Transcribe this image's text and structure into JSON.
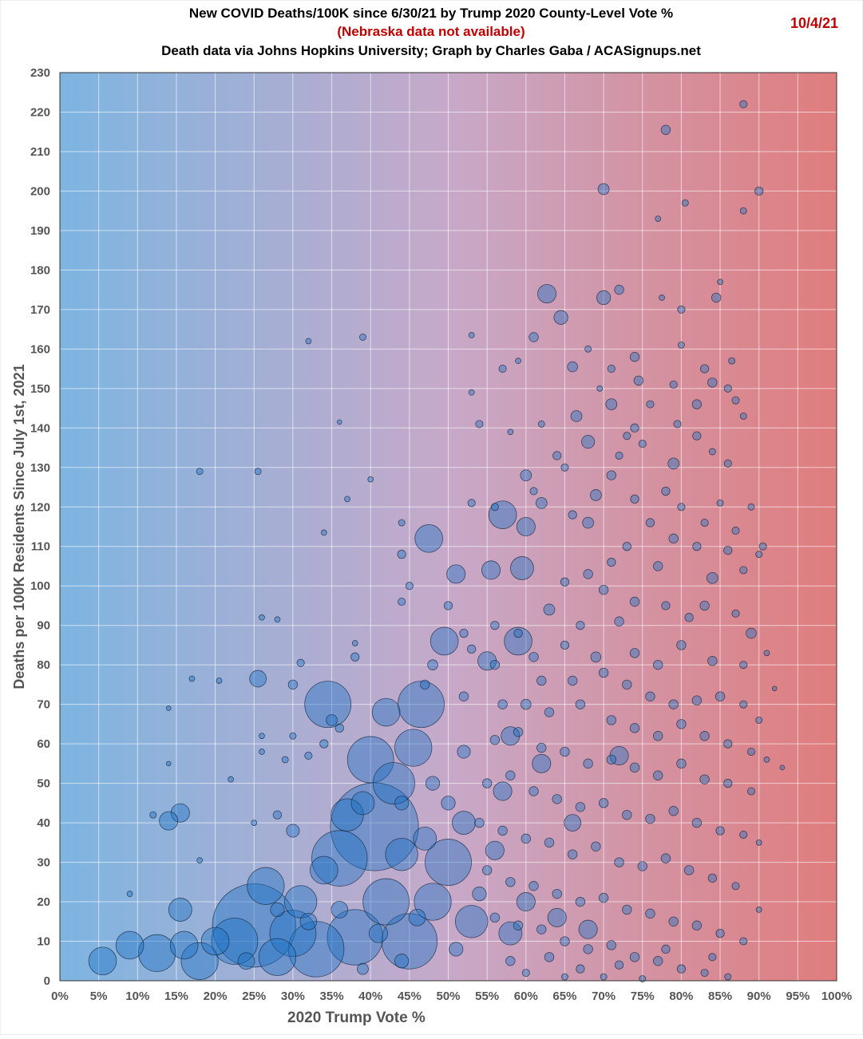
{
  "chart_data": {
    "type": "scatter",
    "title": "New COVID Deaths/100K since 6/30/21 by Trump 2020 County-Level Vote %",
    "subtitle_note": "(Nebraska data not available)",
    "subtitle": "Death data via Johns Hopkins University; Graph by Charles Gaba / ACASignups.net",
    "date": "10/4/21",
    "xlabel": "2020 Trump Vote %",
    "ylabel": "Deaths per 100K Residents Since July 1st, 2021",
    "xlim": [
      0,
      100
    ],
    "ylim": [
      0,
      230
    ],
    "x_ticks": [
      "0%",
      "5%",
      "10%",
      "15%",
      "20%",
      "25%",
      "30%",
      "35%",
      "40%",
      "45%",
      "50%",
      "55%",
      "60%",
      "65%",
      "70%",
      "75%",
      "80%",
      "85%",
      "90%",
      "95%",
      "100%"
    ],
    "y_ticks": [
      "0",
      "10",
      "20",
      "30",
      "40",
      "50",
      "60",
      "70",
      "80",
      "90",
      "100",
      "110",
      "120",
      "130",
      "140",
      "150",
      "160",
      "170",
      "180",
      "190",
      "200",
      "210",
      "220",
      "230"
    ],
    "grid": true,
    "bubble_size_meaning": "relative county population",
    "colors": {
      "bubble": "#1a6fc4",
      "background_left": "#7db5e1",
      "background_mid": "#c7a9c9",
      "background_right": "#e07d7d",
      "note": "#c00000"
    },
    "points": [
      [
        25,
        14,
        9
      ],
      [
        40.5,
        39,
        9.5
      ],
      [
        36,
        31,
        6
      ],
      [
        45,
        10,
        6
      ],
      [
        38,
        11,
        6
      ],
      [
        33,
        8,
        6
      ],
      [
        30,
        12,
        5
      ],
      [
        42,
        20,
        5
      ],
      [
        50,
        30,
        5
      ],
      [
        22.5,
        10,
        5
      ],
      [
        40,
        56,
        5
      ],
      [
        34.5,
        70,
        5
      ],
      [
        46.5,
        70,
        5
      ],
      [
        45.5,
        59,
        4
      ],
      [
        43,
        50,
        4.5
      ],
      [
        18,
        5,
        4
      ],
      [
        12.5,
        7,
        4
      ],
      [
        26.5,
        24,
        4
      ],
      [
        28,
        6,
        4
      ],
      [
        48,
        20,
        4
      ],
      [
        53,
        15,
        3.5
      ],
      [
        37,
        42,
        3.5
      ],
      [
        31,
        20,
        3.5
      ],
      [
        44,
        32,
        3.5
      ],
      [
        20,
        10,
        3
      ],
      [
        16,
        9,
        3
      ],
      [
        47.5,
        112,
        3
      ],
      [
        57,
        118,
        3
      ],
      [
        49.5,
        86,
        3
      ],
      [
        59,
        86,
        3
      ],
      [
        5.5,
        5,
        3
      ],
      [
        9,
        9,
        3
      ],
      [
        59.5,
        104.5,
        2.5
      ],
      [
        15.5,
        18,
        2.5
      ],
      [
        15.5,
        42.5,
        2
      ],
      [
        14,
        40.5,
        2
      ],
      [
        62.7,
        174,
        2
      ],
      [
        51,
        103,
        2
      ],
      [
        55.5,
        104,
        2
      ],
      [
        60,
        115,
        2
      ],
      [
        64.5,
        168,
        1.5
      ],
      [
        70,
        173,
        1.5
      ],
      [
        25.5,
        76.5,
        1.8
      ],
      [
        55,
        81,
        2
      ],
      [
        58,
        62,
        2
      ],
      [
        62,
        55,
        2
      ],
      [
        57,
        48,
        2
      ],
      [
        52,
        40,
        2.5
      ],
      [
        56,
        33,
        2
      ],
      [
        60,
        20,
        2
      ],
      [
        64,
        16,
        2
      ],
      [
        58,
        12,
        2.5
      ],
      [
        68,
        13,
        2
      ],
      [
        72,
        57,
        2
      ],
      [
        66,
        40,
        1.8
      ],
      [
        42,
        68,
        3
      ],
      [
        39,
        45,
        2.5
      ],
      [
        34,
        28,
        3
      ],
      [
        47,
        36,
        2.5
      ],
      [
        88,
        222,
        0.8
      ],
      [
        78,
        215.5,
        1
      ],
      [
        70,
        200.5,
        1.2
      ],
      [
        90,
        200,
        0.9
      ],
      [
        80.5,
        197,
        0.7
      ],
      [
        88,
        195,
        0.7
      ],
      [
        77,
        193,
        0.6
      ],
      [
        72,
        175,
        1
      ],
      [
        84.5,
        173,
        1
      ],
      [
        77.5,
        173,
        0.6
      ],
      [
        85,
        177,
        0.6
      ],
      [
        80,
        170,
        0.8
      ],
      [
        61,
        163,
        1
      ],
      [
        68,
        160,
        0.7
      ],
      [
        74,
        158,
        1
      ],
      [
        80,
        161,
        0.7
      ],
      [
        86.5,
        157,
        0.7
      ],
      [
        83,
        155,
        0.9
      ],
      [
        66,
        155.5,
        1.1
      ],
      [
        74.5,
        152,
        1
      ],
      [
        84,
        151.5,
        1
      ],
      [
        86,
        150,
        0.8
      ],
      [
        79,
        151,
        0.8
      ],
      [
        57,
        155,
        0.8
      ],
      [
        59,
        157,
        0.6
      ],
      [
        71,
        155,
        0.8
      ],
      [
        69.5,
        150,
        0.6
      ],
      [
        87,
        147,
        0.8
      ],
      [
        71,
        146,
        1.2
      ],
      [
        76,
        146,
        0.8
      ],
      [
        82,
        146,
        1
      ],
      [
        88,
        143,
        0.7
      ],
      [
        66.5,
        143,
        1.2
      ],
      [
        79.5,
        141,
        0.8
      ],
      [
        62,
        141,
        0.7
      ],
      [
        74,
        140,
        0.9
      ],
      [
        73,
        138,
        0.8
      ],
      [
        68,
        136.5,
        1.4
      ],
      [
        82,
        138,
        0.9
      ],
      [
        75,
        136,
        0.8
      ],
      [
        79,
        131,
        1.2
      ],
      [
        84,
        134,
        0.7
      ],
      [
        64,
        133,
        0.9
      ],
      [
        72,
        133,
        0.8
      ],
      [
        86,
        131,
        0.8
      ],
      [
        60,
        128,
        1.2
      ],
      [
        65,
        130,
        0.8
      ],
      [
        71,
        128,
        1
      ],
      [
        61,
        124,
        0.8
      ],
      [
        78,
        124,
        0.9
      ],
      [
        69,
        123,
        1.2
      ],
      [
        56,
        120,
        0.8
      ],
      [
        74,
        122,
        0.9
      ],
      [
        80,
        120,
        0.8
      ],
      [
        85,
        121,
        0.7
      ],
      [
        89,
        120,
        0.7
      ],
      [
        66,
        118,
        0.9
      ],
      [
        68,
        116,
        1.2
      ],
      [
        76,
        116,
        0.9
      ],
      [
        83,
        116,
        0.8
      ],
      [
        87,
        114,
        0.8
      ],
      [
        62,
        121,
        1.2
      ],
      [
        53,
        121,
        0.8
      ],
      [
        44,
        116,
        0.7
      ],
      [
        44,
        108,
        0.9
      ],
      [
        40,
        127,
        0.6
      ],
      [
        37,
        122,
        0.6
      ],
      [
        34,
        113.5,
        0.6
      ],
      [
        32,
        162,
        0.6
      ],
      [
        39,
        163,
        0.7
      ],
      [
        25.5,
        129,
        0.7
      ],
      [
        18,
        129,
        0.7
      ],
      [
        36,
        141.5,
        0.5
      ],
      [
        53,
        149,
        0.6
      ],
      [
        53,
        163.5,
        0.6
      ],
      [
        58,
        139,
        0.6
      ],
      [
        54,
        141,
        0.8
      ],
      [
        73,
        110,
        0.9
      ],
      [
        79,
        112,
        1
      ],
      [
        82,
        110,
        0.9
      ],
      [
        86,
        109,
        0.9
      ],
      [
        90,
        108,
        0.7
      ],
      [
        90.5,
        110,
        0.8
      ],
      [
        84,
        102,
        1.2
      ],
      [
        88,
        104,
        0.8
      ],
      [
        77,
        105,
        1
      ],
      [
        71,
        106,
        0.9
      ],
      [
        68,
        103,
        1
      ],
      [
        65,
        101,
        0.9
      ],
      [
        70,
        99,
        1
      ],
      [
        74,
        96,
        1
      ],
      [
        78,
        95,
        0.9
      ],
      [
        83,
        95,
        1
      ],
      [
        87,
        93,
        0.8
      ],
      [
        81,
        92,
        0.9
      ],
      [
        72,
        91,
        1
      ],
      [
        67,
        90,
        0.9
      ],
      [
        63,
        94,
        1.2
      ],
      [
        56,
        90,
        0.9
      ],
      [
        59,
        88,
        0.9
      ],
      [
        61,
        82,
        1
      ],
      [
        65,
        85,
        0.9
      ],
      [
        69,
        82,
        1.1
      ],
      [
        74,
        83,
        1
      ],
      [
        77,
        80,
        1
      ],
      [
        80,
        85,
        1
      ],
      [
        84,
        81,
        1
      ],
      [
        88,
        80,
        0.8
      ],
      [
        89,
        88,
        1.1
      ],
      [
        91,
        83,
        0.6
      ],
      [
        92,
        74,
        0.5
      ],
      [
        62,
        76,
        1
      ],
      [
        66,
        76,
        1
      ],
      [
        70,
        78,
        1
      ],
      [
        73,
        75,
        1
      ],
      [
        76,
        72,
        1
      ],
      [
        79,
        70,
        1
      ],
      [
        82,
        71,
        1
      ],
      [
        85,
        72,
        1
      ],
      [
        88,
        70,
        0.8
      ],
      [
        90,
        66,
        0.7
      ],
      [
        60,
        70,
        1.1
      ],
      [
        63,
        68,
        1
      ],
      [
        67,
        70,
        1
      ],
      [
        71,
        66,
        1
      ],
      [
        74,
        64,
        1
      ],
      [
        77,
        62,
        1
      ],
      [
        80,
        65,
        1
      ],
      [
        83,
        62,
        1
      ],
      [
        86,
        60,
        0.9
      ],
      [
        89,
        58,
        0.8
      ],
      [
        91,
        56,
        0.6
      ],
      [
        93,
        54,
        0.5
      ],
      [
        56,
        61,
        1
      ],
      [
        59,
        63,
        1
      ],
      [
        62,
        59,
        1
      ],
      [
        65,
        58,
        1
      ],
      [
        68,
        55,
        1
      ],
      [
        71,
        56,
        1
      ],
      [
        74,
        54,
        1
      ],
      [
        77,
        52,
        1
      ],
      [
        80,
        55,
        1
      ],
      [
        83,
        51,
        1
      ],
      [
        86,
        50,
        0.9
      ],
      [
        89,
        48,
        0.8
      ],
      [
        55,
        50,
        1
      ],
      [
        58,
        52,
        1
      ],
      [
        61,
        48,
        1
      ],
      [
        64,
        46,
        1
      ],
      [
        67,
        44,
        1
      ],
      [
        70,
        45,
        1
      ],
      [
        73,
        42,
        1
      ],
      [
        76,
        41,
        1
      ],
      [
        79,
        43,
        1
      ],
      [
        82,
        40,
        1
      ],
      [
        85,
        38,
        0.9
      ],
      [
        88,
        37,
        0.8
      ],
      [
        90,
        35,
        0.6
      ],
      [
        54,
        40,
        1
      ],
      [
        57,
        38,
        1
      ],
      [
        60,
        36,
        1
      ],
      [
        63,
        35,
        1
      ],
      [
        66,
        32,
        1
      ],
      [
        69,
        34,
        1
      ],
      [
        72,
        30,
        1
      ],
      [
        75,
        29,
        1
      ],
      [
        78,
        31,
        1
      ],
      [
        81,
        28,
        1
      ],
      [
        84,
        26,
        0.9
      ],
      [
        87,
        24,
        0.8
      ],
      [
        90,
        18,
        0.6
      ],
      [
        55,
        28,
        1
      ],
      [
        58,
        25,
        1
      ],
      [
        61,
        24,
        1
      ],
      [
        64,
        22,
        1
      ],
      [
        67,
        20,
        1
      ],
      [
        70,
        21,
        1
      ],
      [
        73,
        18,
        1
      ],
      [
        76,
        17,
        1
      ],
      [
        79,
        15,
        1
      ],
      [
        82,
        14,
        1
      ],
      [
        85,
        12,
        0.9
      ],
      [
        88,
        10,
        0.8
      ],
      [
        56,
        16,
        1
      ],
      [
        59,
        14,
        1
      ],
      [
        62,
        13,
        1
      ],
      [
        65,
        10,
        1
      ],
      [
        68,
        8,
        1
      ],
      [
        71,
        9,
        1
      ],
      [
        74,
        6,
        1
      ],
      [
        77,
        5,
        1
      ],
      [
        80,
        3,
        0.9
      ],
      [
        83,
        2,
        0.8
      ],
      [
        86,
        1,
        0.7
      ],
      [
        60,
        2,
        0.8
      ],
      [
        65,
        1,
        0.7
      ],
      [
        70,
        1,
        0.7
      ],
      [
        75,
        0.5,
        0.7
      ],
      [
        58,
        5,
        1
      ],
      [
        63,
        6,
        1
      ],
      [
        67,
        3,
        0.9
      ],
      [
        72,
        4,
        0.9
      ],
      [
        78,
        8,
        0.9
      ],
      [
        84,
        6,
        0.8
      ],
      [
        26,
        92,
        0.6
      ],
      [
        28,
        91.5,
        0.6
      ],
      [
        20.5,
        76,
        0.6
      ],
      [
        31,
        80.5,
        0.8
      ],
      [
        30,
        75,
        1
      ],
      [
        38,
        85.5,
        0.6
      ],
      [
        38,
        82,
        0.9
      ],
      [
        35,
        66,
        1.2
      ],
      [
        30,
        62,
        0.7
      ],
      [
        26,
        62,
        0.6
      ],
      [
        26,
        58,
        0.6
      ],
      [
        22,
        51,
        0.6
      ],
      [
        17,
        76.5,
        0.6
      ],
      [
        14,
        69,
        0.5
      ],
      [
        14,
        55,
        0.5
      ],
      [
        9,
        22,
        0.6
      ],
      [
        12,
        42,
        0.7
      ],
      [
        18,
        30.5,
        0.6
      ],
      [
        29,
        56,
        0.7
      ],
      [
        32,
        57,
        0.8
      ],
      [
        34,
        60,
        0.9
      ],
      [
        36,
        64,
        0.9
      ],
      [
        28,
        42,
        0.9
      ],
      [
        30,
        38,
        1.4
      ],
      [
        25,
        40,
        0.6
      ],
      [
        45,
        100,
        0.8
      ],
      [
        44,
        96,
        0.8
      ],
      [
        50,
        95,
        0.9
      ],
      [
        52,
        88,
        0.9
      ],
      [
        48,
        80,
        1.1
      ],
      [
        53,
        84,
        0.9
      ],
      [
        56,
        80,
        1
      ],
      [
        47,
        75,
        1
      ],
      [
        52,
        72,
        1
      ],
      [
        57,
        70,
        1
      ],
      [
        52,
        58,
        1.4
      ],
      [
        48,
        50,
        1.5
      ],
      [
        44,
        45,
        1.5
      ],
      [
        50,
        45,
        1.5
      ],
      [
        54,
        22,
        1.5
      ],
      [
        46,
        16,
        1.8
      ],
      [
        41,
        12,
        2
      ],
      [
        36,
        18,
        1.8
      ],
      [
        32,
        15,
        1.8
      ],
      [
        28,
        18,
        1.5
      ],
      [
        24,
        5,
        1.8
      ],
      [
        51,
        8,
        1.5
      ],
      [
        44,
        5,
        1.5
      ],
      [
        39,
        3,
        1.2
      ]
    ]
  }
}
